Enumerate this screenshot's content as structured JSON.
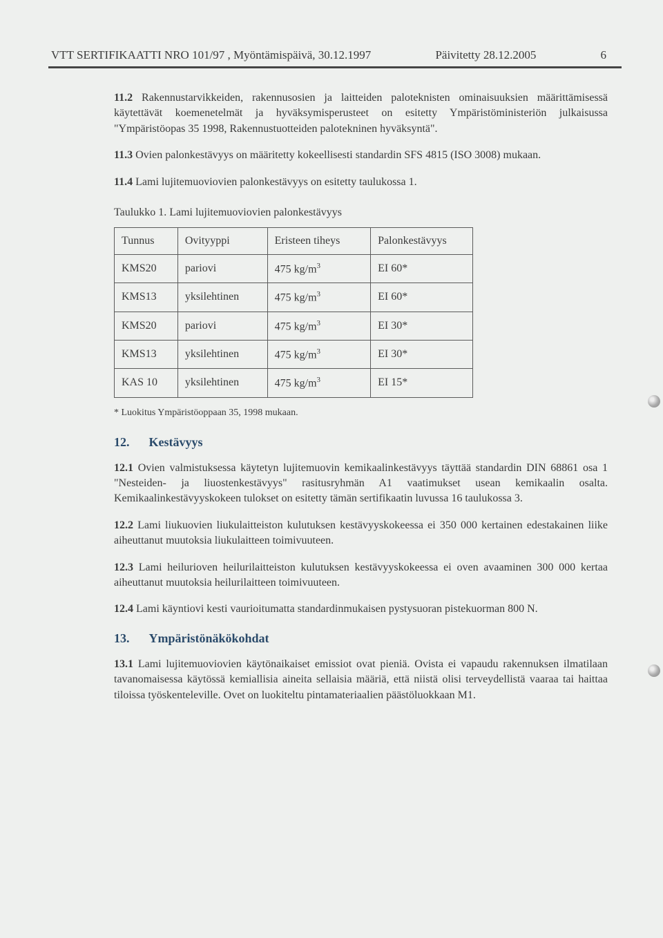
{
  "header": {
    "left": "VTT SERTIFIKAATTI NRO 101/97 , Myöntämispäivä, 30.12.1997",
    "center": "Päivitetty 28.12.2005",
    "page": "6"
  },
  "para_11_2": {
    "lead": "11.2",
    "text": " Rakennustarvikkeiden, rakennusosien ja laitteiden paloteknisten ominaisuuksien määrittämisessä käytettävät koemenetelmät ja hyväksymisperusteet on esitetty Ympäristöministeriön julkaisussa \"Ympäristöopas 35 1998, Rakennustuotteiden palotekninen hyväksyntä\"."
  },
  "para_11_3": {
    "lead": "11.3",
    "text": "  Ovien palonkestävyys on määritetty kokeellisesti standardin SFS 4815 (ISO 3008) mukaan."
  },
  "para_11_4": {
    "lead": "11.4",
    "text": "  Lami lujitemuoviovien palonkestävyys on esitetty taulukossa 1."
  },
  "table_caption": "Taulukko 1. Lami lujitemuoviovien palonkestävyys",
  "table": {
    "cols": [
      "Tunnus",
      "Ovityyppi",
      "Eristeen tiheys",
      "Palonkestävyys"
    ],
    "rows": [
      [
        "KMS20",
        "pariovi",
        "475 kg/m",
        "EI 60*"
      ],
      [
        "KMS13",
        "yksilehtinen",
        "475 kg/m",
        "EI 60*"
      ],
      [
        "KMS20",
        "pariovi",
        "475 kg/m",
        "EI 30*"
      ],
      [
        "KMS13",
        "yksilehtinen",
        "475 kg/m",
        "EI 30*"
      ],
      [
        "KAS 10",
        "yksilehtinen",
        "475 kg/m",
        "EI 15*"
      ]
    ],
    "cube": "3"
  },
  "footnote": "* Luokitus Ympäristöoppaan 35, 1998 mukaan.",
  "sec12": {
    "num": "12.",
    "title": "Kestävyys"
  },
  "para_12_1": {
    "lead": "12.1",
    "text": " Ovien valmistuksessa käytetyn lujitemuovin kemikaalinkestävyys täyttää standardin DIN 68861 osa 1 \"Nesteiden- ja liuostenkestävyys\" rasitusryhmän A1 vaatimukset usean kemikaalin osalta. Kemikaalinkestävyyskokeen tulokset on esitetty tämän sertifikaatin luvussa 16 taulukossa 3."
  },
  "para_12_2": {
    "lead": "12.2",
    "text": " Lami liukuovien liukulaitteiston kulutuksen kestävyyskokeessa ei 350 000 kertainen edestakainen liike aiheuttanut muutoksia liukulaitteen toimivuuteen."
  },
  "para_12_3": {
    "lead": "12.3",
    "text": " Lami heilurioven heilurilaitteiston kulutuksen kestävyyskokeessa ei oven avaaminen 300 000 kertaa aiheuttanut muutoksia heilurilaitteen toimivuuteen."
  },
  "para_12_4": {
    "lead": "12.4",
    "text": "    Lami käyntiovi kesti vaurioitumatta standardinmukaisen pystysuoran pistekuorman 800 N."
  },
  "sec13": {
    "num": "13.",
    "title": "Ympäristönäkökohdat"
  },
  "para_13_1": {
    "lead": "13.1",
    "text": " Lami lujitemuoviovien käytönaikaiset emissiot ovat pieniä. Ovista ei vapaudu rakennuksen ilmatilaan tavanomaisessa käytössä kemiallisia aineita sellaisia määriä, että niistä olisi terveydellistä vaaraa tai haittaa tiloissa työskenteleville. Ovet on luokiteltu pintamateriaalien päästöluokkaan M1."
  }
}
